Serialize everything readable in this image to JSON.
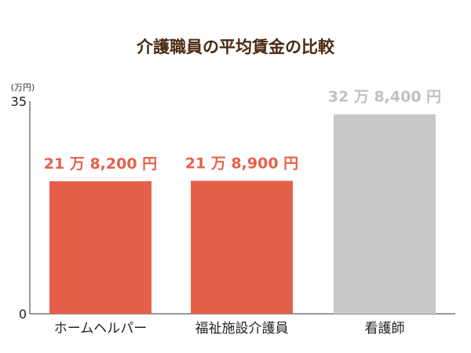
{
  "chart_data": {
    "type": "bar",
    "title": "介護職員の平均賃金の比較",
    "unit_label": "(万円)",
    "ylim": [
      0,
      35
    ],
    "ytick_labels": [
      "0",
      "35"
    ],
    "categories": [
      "ホームヘルパー",
      "福祉施設介護員",
      "看護師"
    ],
    "values": [
      21.82,
      21.89,
      32.84
    ],
    "data_labels": [
      "21 万 8,200 円",
      "21 万 8,900 円",
      "32 万 8,400 円"
    ],
    "colors": [
      "#e5604a",
      "#e5604a",
      "#c8c8c8"
    ],
    "label_colors": [
      "#e5604a",
      "#e5604a",
      "#c0c0c0"
    ],
    "title_color": "#4a2a12",
    "axis_color": "#333333",
    "grid": false
  }
}
